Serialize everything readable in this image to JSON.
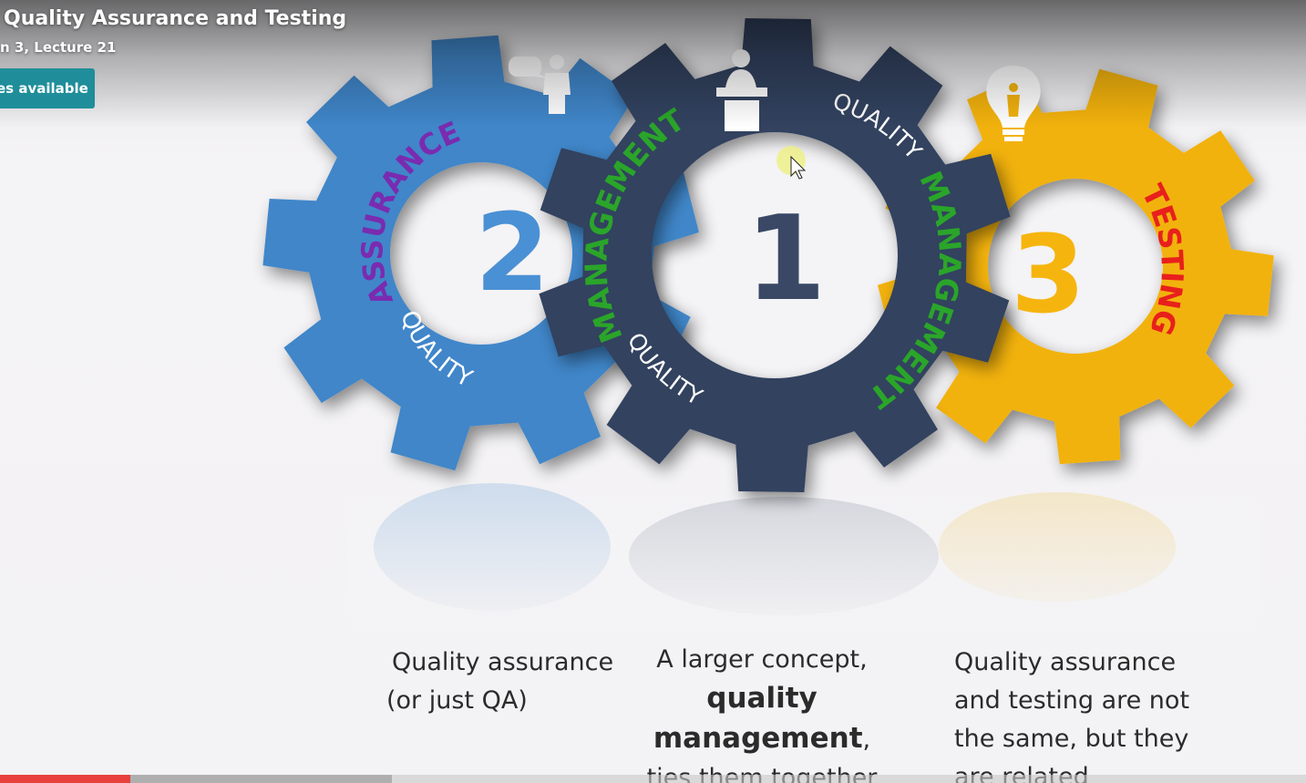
{
  "player": {
    "title": "Quality Assurance and Testing",
    "subtitle": "n 3, Lecture 21",
    "captions_button": "es available",
    "progress": {
      "played_fraction": 0.1,
      "buffered_fraction": 0.3
    }
  },
  "slide": {
    "gears": [
      {
        "number": "2",
        "label_top": "ASSURANCE",
        "label_bottom": "QUALITY",
        "color": "#3f86c9",
        "icon": "presenter-speech-icon"
      },
      {
        "number": "1",
        "label_top": "MANAGEMENT",
        "label_right_small": "QUALITY",
        "label_right": "MANAGEMENT",
        "label_bottom": "QUALITY",
        "color": "#33425f",
        "icon": "podium-speaker-icon"
      },
      {
        "number": "3",
        "label_right": "TESTING",
        "color": "#f2b20f",
        "icon": "lightbulb-idea-icon"
      }
    ],
    "captions": {
      "qa": [
        "Quality assurance",
        "(or just QA)"
      ],
      "qm": {
        "line1": "A larger concept,",
        "bold1": "quality",
        "bold2": "management",
        "tail": ",",
        "line4": "ties them together"
      },
      "testing": [
        "Quality assurance",
        "and testing are not",
        "the same, but they",
        "are related"
      ]
    },
    "colors": {
      "assurance_text": "#7a2bb0",
      "management_text": "#2aa52a",
      "testing_text": "#e8201c",
      "quality_text": "#ffffff"
    }
  }
}
